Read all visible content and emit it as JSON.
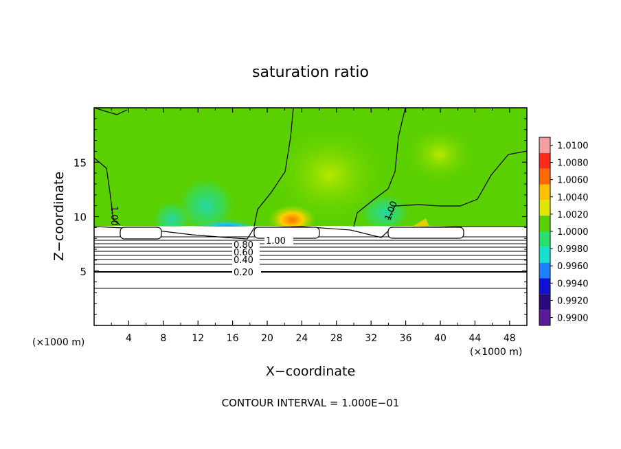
{
  "chart_data": {
    "type": "heatmap",
    "title": "saturation ratio",
    "xlabel": "X−coordinate",
    "ylabel": "Z−coordinate",
    "x_unit_left": "(×1000 m)",
    "x_unit_right": "(×1000 m)",
    "xlim": [
      0,
      50
    ],
    "ylim": [
      0,
      20
    ],
    "x_ticks": [
      4,
      8,
      12,
      16,
      20,
      24,
      28,
      32,
      36,
      40,
      44,
      48
    ],
    "y_ticks": [
      5,
      10,
      15
    ],
    "footer": "CONTOUR INTERVAL = 1.000E−01",
    "colorbar": {
      "levels": [
        "1.0100",
        "1.0080",
        "1.0060",
        "1.0040",
        "1.0020",
        "1.0000",
        "0.9980",
        "0.9960",
        "0.9940",
        "0.9920",
        "0.9900"
      ],
      "colors": [
        "#f5a0a0",
        "#ff2a1a",
        "#ff6a00",
        "#ffc000",
        "#dfe800",
        "#5ad000",
        "#28e070",
        "#1ae0d0",
        "#1f7fff",
        "#1010d0",
        "#2a0a80",
        "#5a1a9a"
      ]
    },
    "contour_labels": [
      {
        "text": "1.00"
      },
      {
        "text": "1.00"
      },
      {
        "text": "1.00"
      },
      {
        "text": "0.80"
      },
      {
        "text": "0.60"
      },
      {
        "text": "0.40"
      },
      {
        "text": "0.20"
      }
    ]
  }
}
